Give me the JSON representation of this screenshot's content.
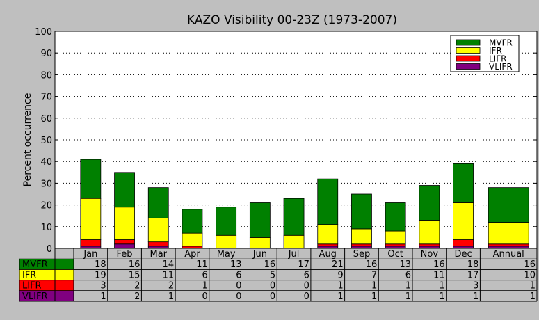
{
  "chart_data": {
    "type": "bar",
    "stacked": true,
    "title": "KAZO Visibility 00-23Z (1973-2007)",
    "xlabel": "",
    "ylabel": "Percent occurrence",
    "ylim": [
      0,
      100
    ],
    "yticks": [
      0,
      10,
      20,
      30,
      40,
      50,
      60,
      70,
      80,
      90,
      100
    ],
    "grid": "horizontal dotted",
    "legend_position": "top-right",
    "categories": [
      "Jan",
      "Feb",
      "Mar",
      "Apr",
      "May",
      "Jun",
      "Jul",
      "Aug",
      "Sep",
      "Oct",
      "Nov",
      "Dec",
      "Annual"
    ],
    "series": [
      {
        "name": "VLIFR",
        "color": "#800080",
        "values": [
          1,
          2,
          1,
          0,
          0,
          0,
          0,
          1,
          1,
          1,
          1,
          1,
          1
        ],
        "labels": [
          "1",
          "2",
          "1",
          "0",
          "0",
          "0",
          "0",
          "1",
          "1",
          "1",
          "1",
          "1",
          "1"
        ]
      },
      {
        "name": "LIFR",
        "color": "#ff0000",
        "values": [
          3,
          2,
          2,
          1,
          0,
          0,
          0,
          1,
          1,
          1,
          1,
          3,
          1
        ],
        "labels": [
          "3",
          "2",
          "2",
          "1",
          "0",
          "0",
          "0",
          "1",
          "1",
          "1",
          "1",
          "3",
          "1"
        ]
      },
      {
        "name": "IFR",
        "color": "#ffff00",
        "values": [
          19,
          15,
          11,
          6,
          6,
          5,
          6,
          9,
          7,
          6,
          11,
          17,
          10
        ],
        "labels": [
          "19",
          "15",
          "11",
          "6",
          "6",
          "5",
          "6",
          "9",
          "7",
          "6",
          "11",
          "17",
          "10"
        ]
      },
      {
        "name": "MVFR",
        "color": "#008000",
        "values": [
          18,
          16,
          14,
          11,
          13,
          16,
          17,
          21,
          16,
          13,
          16,
          18,
          16
        ],
        "labels": [
          "18",
          "16",
          "14",
          "11",
          "13",
          "16",
          "17",
          "21",
          "16",
          "13",
          "16",
          "18",
          "16"
        ]
      }
    ],
    "legend_order": [
      "MVFR",
      "IFR",
      "LIFR",
      "VLIFR"
    ],
    "table_row_order": [
      "MVFR",
      "IFR",
      "LIFR",
      "VLIFR"
    ]
  }
}
